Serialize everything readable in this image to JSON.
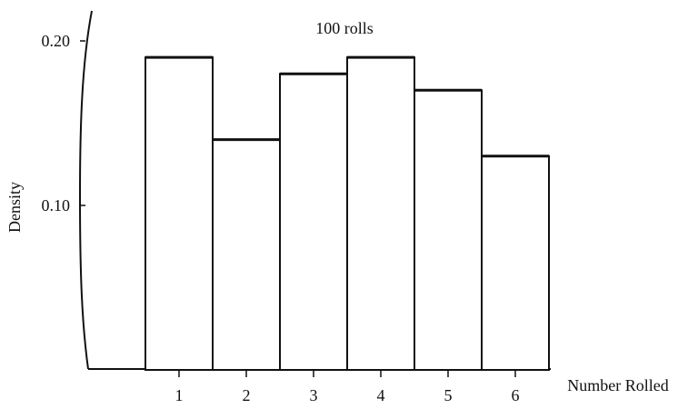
{
  "chart_data": {
    "type": "bar",
    "title": "100 rolls",
    "xlabel": "Number Rolled",
    "ylabel": "Density",
    "categories": [
      "1",
      "2",
      "3",
      "4",
      "5",
      "6"
    ],
    "values": [
      0.19,
      0.14,
      0.18,
      0.19,
      0.17,
      0.13
    ],
    "yticks": [
      0.1,
      0.2
    ],
    "ytick_labels": [
      "0.10",
      "0.20"
    ],
    "ylim": [
      0,
      0.21
    ],
    "grid": false,
    "legend": "none",
    "colors": {
      "bar_fill": "#ffffff",
      "stroke": "#111111",
      "text": "#111111"
    }
  }
}
